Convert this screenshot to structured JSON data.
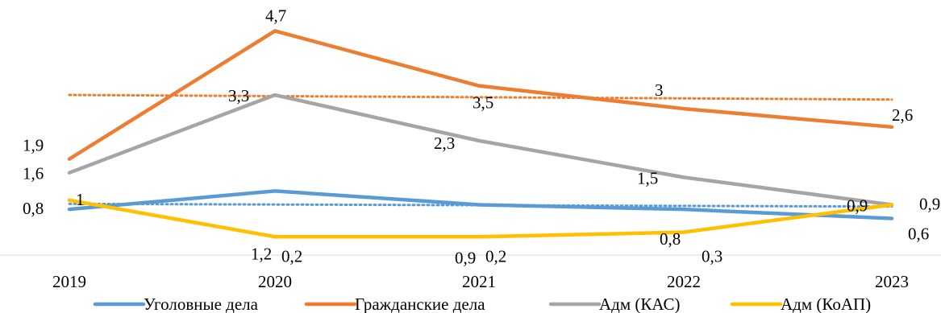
{
  "chart_data": {
    "type": "line",
    "title": "",
    "xlabel": "",
    "ylabel": "",
    "categories": [
      "2019",
      "2020",
      "2021",
      "2022",
      "2023"
    ],
    "ylim": [
      -0.2,
      5.2
    ],
    "grid": false,
    "legend_position": "bottom",
    "series": [
      {
        "name": "Уголовные дела",
        "color": "#5b9bd5",
        "values": [
          0.8,
          1.2,
          0.9,
          0.8,
          0.6
        ],
        "labels": [
          "0,8",
          "1,2",
          "0,9",
          "0,8",
          "0,6"
        ],
        "trendline": [
          0.92,
          0.86
        ]
      },
      {
        "name": "Гражданские дела",
        "color": "#ed7d31",
        "values": [
          1.9,
          4.7,
          3.5,
          3.0,
          2.6
        ],
        "labels": [
          "1,9",
          "4,7",
          "3,5",
          "3",
          "2,6"
        ],
        "trendline": [
          3.3,
          3.2
        ]
      },
      {
        "name": "Адм (КАС)",
        "color": "#a5a5a5",
        "values": [
          1.6,
          3.3,
          2.3,
          1.5,
          0.9
        ],
        "labels": [
          "1,6",
          "3,3",
          "2,3",
          "1,5",
          "0,9"
        ]
      },
      {
        "name": "Адм (КоАП)",
        "color": "#ffc000",
        "values": [
          1.0,
          0.2,
          0.2,
          0.3,
          0.9
        ],
        "labels": [
          "1",
          "0,2",
          "0,2",
          "0,3",
          "0,9"
        ]
      }
    ]
  }
}
